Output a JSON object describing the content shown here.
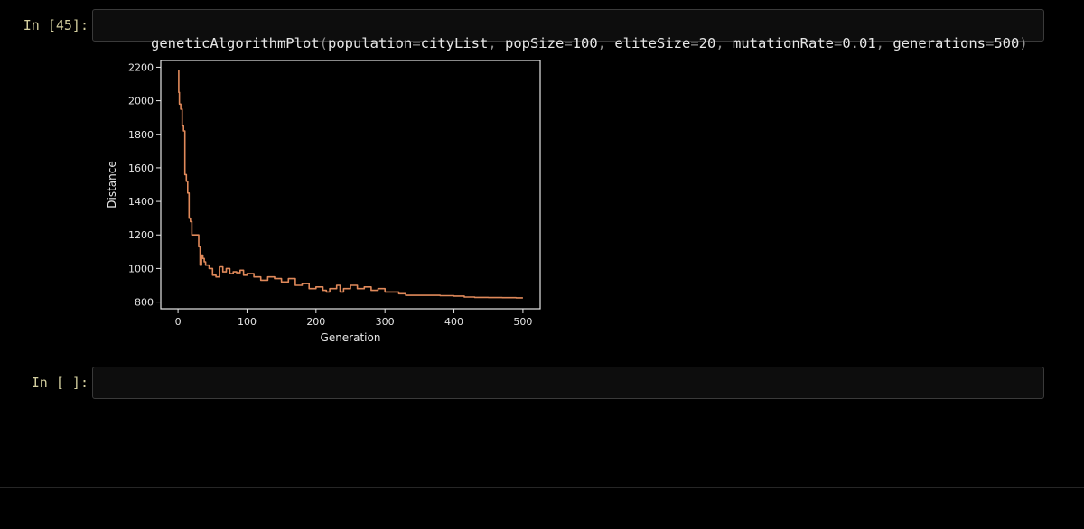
{
  "cells": [
    {
      "prompt": "In [45]:",
      "code": {
        "fn": "geneticAlgorithmPlot",
        "open": "(",
        "args": [
          {
            "name": "population",
            "value": "cityList"
          },
          {
            "name": "popSize",
            "value": "100"
          },
          {
            "name": "eliteSize",
            "value": "20"
          },
          {
            "name": "mutationRate",
            "value": "0.01"
          },
          {
            "name": "generations",
            "value": "500"
          }
        ],
        "eq": "=",
        "sep": ", ",
        "close": ")"
      }
    },
    {
      "prompt": "In [ ]:",
      "code_value": ""
    }
  ],
  "colors": {
    "line": "#e0895a",
    "axes": "#e6e6e6",
    "prompt": "#d4cf9f"
  },
  "chart_data": {
    "type": "line",
    "title": "",
    "xlabel": "Generation",
    "ylabel": "Distance",
    "xlim": [
      -25,
      525
    ],
    "ylim": [
      760,
      2240
    ],
    "xticks": [
      0,
      100,
      200,
      300,
      400,
      500
    ],
    "yticks": [
      800,
      1000,
      1200,
      1400,
      1600,
      1800,
      2000,
      2200
    ],
    "grid": false,
    "legend": "none",
    "series": [
      {
        "x": [
          0,
          1,
          2,
          4,
          6,
          8,
          10,
          12,
          14,
          16,
          18,
          20,
          22,
          24,
          26,
          28,
          30,
          32,
          34,
          36,
          38,
          40,
          45,
          50,
          55,
          60,
          65,
          70,
          75,
          80,
          85,
          90,
          95,
          100,
          110,
          120,
          130,
          140,
          150,
          160,
          170,
          180,
          190,
          200,
          210,
          215,
          220,
          230,
          235,
          240,
          250,
          260,
          270,
          280,
          290,
          300,
          310,
          320,
          330,
          340,
          350,
          360,
          370,
          380,
          390,
          400,
          410,
          415,
          420,
          430,
          440,
          450,
          460,
          470,
          480,
          490,
          500
        ],
        "y": [
          2180,
          2050,
          1980,
          1950,
          1850,
          1820,
          1560,
          1520,
          1450,
          1300,
          1280,
          1200,
          1200,
          1200,
          1200,
          1200,
          1130,
          1020,
          1080,
          1060,
          1040,
          1020,
          1000,
          960,
          950,
          1010,
          980,
          1000,
          970,
          980,
          975,
          990,
          960,
          970,
          950,
          930,
          950,
          940,
          920,
          940,
          900,
          910,
          880,
          890,
          870,
          860,
          880,
          900,
          860,
          880,
          900,
          880,
          890,
          870,
          880,
          860,
          860,
          850,
          840,
          840,
          840,
          840,
          840,
          838,
          838,
          836,
          836,
          830,
          830,
          828,
          828,
          827,
          827,
          826,
          826,
          825,
          825
        ]
      }
    ]
  }
}
